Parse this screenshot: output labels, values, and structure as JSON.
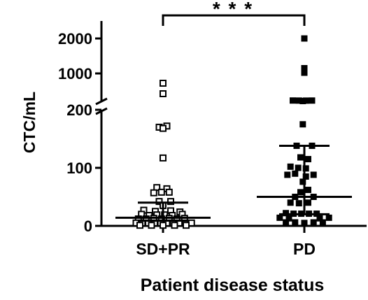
{
  "chart_data": {
    "type": "scatter",
    "xlabel": "Patient disease status",
    "ylabel": "CTC/mL",
    "categories": [
      "SD+PR",
      "PD"
    ],
    "y_axis": {
      "broken": true,
      "lower_segment": {
        "range": [
          0,
          200
        ],
        "ticks": [
          0,
          100,
          200
        ]
      },
      "upper_segment": {
        "range": [
          200,
          2500
        ],
        "ticks": [
          1000,
          2000
        ]
      },
      "tick_labels": [
        "0",
        "100",
        "200",
        "1000",
        "2000"
      ]
    },
    "significance": {
      "label": "* * *",
      "between": [
        "SD+PR",
        "PD"
      ]
    },
    "series": [
      {
        "name": "SD+PR",
        "marker": "open-square",
        "points": [
          {
            "dx": 0.0,
            "y": 720
          },
          {
            "dx": 0.0,
            "y": 420
          },
          {
            "dx": -0.05,
            "y": 170
          },
          {
            "dx": 0.05,
            "y": 172
          },
          {
            "dx": 0.0,
            "y": 168
          },
          {
            "dx": 0.0,
            "y": 117
          },
          {
            "dx": -0.08,
            "y": 66
          },
          {
            "dx": 0.05,
            "y": 64
          },
          {
            "dx": -0.12,
            "y": 57
          },
          {
            "dx": -0.02,
            "y": 58
          },
          {
            "dx": 0.08,
            "y": 58
          },
          {
            "dx": -0.05,
            "y": 42
          },
          {
            "dx": 0.1,
            "y": 42
          },
          {
            "dx": 0.0,
            "y": 35
          },
          {
            "dx": -0.25,
            "y": 27
          },
          {
            "dx": -0.1,
            "y": 25
          },
          {
            "dx": 0.1,
            "y": 26
          },
          {
            "dx": 0.22,
            "y": 24
          },
          {
            "dx": -0.28,
            "y": 20
          },
          {
            "dx": -0.18,
            "y": 18
          },
          {
            "dx": -0.08,
            "y": 19
          },
          {
            "dx": 0.02,
            "y": 19
          },
          {
            "dx": 0.12,
            "y": 18
          },
          {
            "dx": 0.25,
            "y": 20
          },
          {
            "dx": -0.32,
            "y": 12
          },
          {
            "dx": -0.22,
            "y": 12
          },
          {
            "dx": -0.12,
            "y": 13
          },
          {
            "dx": -0.02,
            "y": 12
          },
          {
            "dx": 0.08,
            "y": 13
          },
          {
            "dx": 0.18,
            "y": 12
          },
          {
            "dx": 0.28,
            "y": 13
          },
          {
            "dx": -0.35,
            "y": 5
          },
          {
            "dx": -0.27,
            "y": 5
          },
          {
            "dx": -0.19,
            "y": 5
          },
          {
            "dx": -0.11,
            "y": 5
          },
          {
            "dx": -0.03,
            "y": 5
          },
          {
            "dx": 0.05,
            "y": 5
          },
          {
            "dx": 0.13,
            "y": 5
          },
          {
            "dx": 0.21,
            "y": 5
          },
          {
            "dx": 0.29,
            "y": 5
          },
          {
            "dx": 0.37,
            "y": 5
          },
          {
            "dx": -0.3,
            "y": 1
          },
          {
            "dx": -0.15,
            "y": 1
          },
          {
            "dx": 0.0,
            "y": 1
          },
          {
            "dx": 0.15,
            "y": 1
          },
          {
            "dx": 0.3,
            "y": 1
          }
        ],
        "lines": {
          "upper": 40,
          "middle": 14,
          "lower": 9
        }
      },
      {
        "name": "PD",
        "marker": "filled-square",
        "points": [
          {
            "dx": 0.0,
            "y": 2000
          },
          {
            "dx": 0.0,
            "y": 1150
          },
          {
            "dx": 0.0,
            "y": 1020
          },
          {
            "dx": -0.15,
            "y": 225
          },
          {
            "dx": -0.07,
            "y": 223
          },
          {
            "dx": 0.02,
            "y": 222
          },
          {
            "dx": 0.1,
            "y": 224
          },
          {
            "dx": -0.02,
            "y": 210
          },
          {
            "dx": -0.02,
            "y": 175
          },
          {
            "dx": -0.1,
            "y": 138
          },
          {
            "dx": 0.1,
            "y": 138
          },
          {
            "dx": -0.05,
            "y": 118
          },
          {
            "dx": 0.05,
            "y": 115
          },
          {
            "dx": -0.18,
            "y": 102
          },
          {
            "dx": -0.08,
            "y": 100
          },
          {
            "dx": 0.02,
            "y": 99
          },
          {
            "dx": -0.22,
            "y": 88
          },
          {
            "dx": -0.12,
            "y": 90
          },
          {
            "dx": 0.02,
            "y": 85
          },
          {
            "dx": 0.12,
            "y": 88
          },
          {
            "dx": -0.02,
            "y": 76
          },
          {
            "dx": 0.05,
            "y": 62
          },
          {
            "dx": -0.05,
            "y": 58
          },
          {
            "dx": -0.12,
            "y": 50
          },
          {
            "dx": 0.12,
            "y": 50
          },
          {
            "dx": -0.18,
            "y": 40
          },
          {
            "dx": -0.07,
            "y": 39
          },
          {
            "dx": 0.05,
            "y": 40
          },
          {
            "dx": -0.24,
            "y": 22
          },
          {
            "dx": -0.14,
            "y": 21
          },
          {
            "dx": -0.04,
            "y": 21
          },
          {
            "dx": 0.06,
            "y": 21
          },
          {
            "dx": 0.16,
            "y": 21
          },
          {
            "dx": -0.32,
            "y": 14
          },
          {
            "dx": -0.2,
            "y": 13
          },
          {
            "dx": 0.2,
            "y": 13
          },
          {
            "dx": 0.32,
            "y": 14
          },
          {
            "dx": -0.24,
            "y": 6
          },
          {
            "dx": -0.12,
            "y": 6
          },
          {
            "dx": 0.0,
            "y": 5
          },
          {
            "dx": 0.12,
            "y": 6
          },
          {
            "dx": 0.24,
            "y": 6
          }
        ],
        "lines": {
          "upper": 138,
          "middle": 50,
          "lower": 20
        }
      }
    ]
  }
}
